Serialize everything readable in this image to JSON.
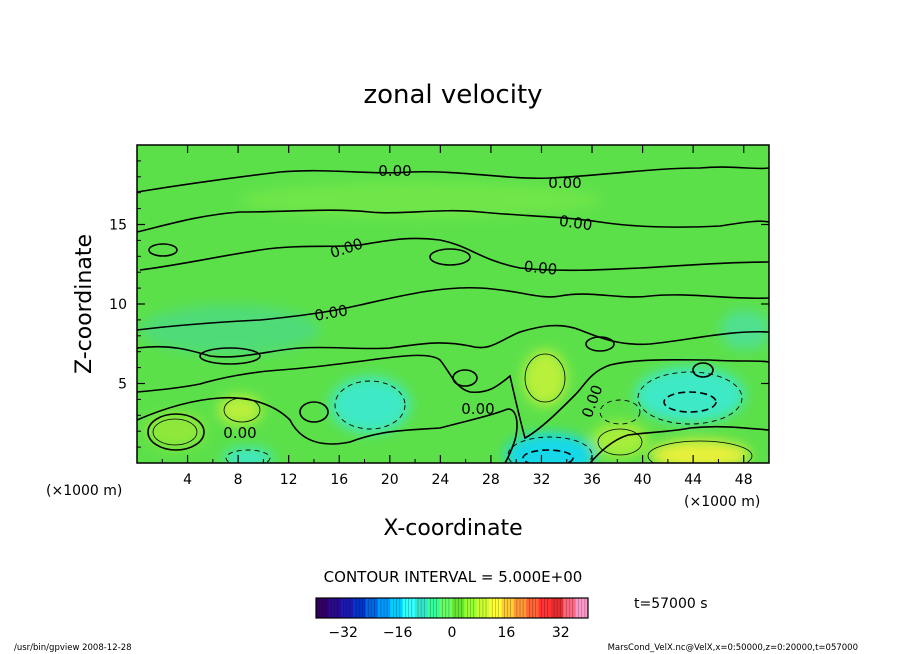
{
  "chart_data": {
    "type": "contour",
    "title": "zonal velocity",
    "xlabel": "X-coordinate",
    "ylabel": "Z-coordinate",
    "x_unit": "(×1000 m)",
    "y_unit": "(×1000 m)",
    "xlim": [
      0,
      50
    ],
    "ylim": [
      0,
      20
    ],
    "x_ticks": [
      4,
      8,
      12,
      16,
      20,
      24,
      28,
      32,
      36,
      40,
      44,
      48
    ],
    "y_ticks": [
      5,
      10,
      15
    ],
    "contour_interval_text": "CONTOUR INTERVAL = 5.000E+00",
    "contour_labels": [
      "0.00",
      "0.00",
      "0.00",
      "0.00",
      "0.00",
      "0.00",
      "0.00",
      "0.00",
      "0.00"
    ],
    "time_text": "t=57000 s",
    "colorbar": {
      "min": -40,
      "max": 40,
      "ticks": [
        -32,
        -16,
        0,
        16,
        32
      ],
      "tick_labels": [
        "−32",
        "−16",
        "0",
        "16",
        "32"
      ],
      "colors": [
        "#330066",
        "#2a0a8c",
        "#1a1ab3",
        "#0033cc",
        "#0066e6",
        "#0099ff",
        "#00ccff",
        "#33ffff",
        "#33e6cc",
        "#33ff99",
        "#66ff66",
        "#66e633",
        "#99ff33",
        "#ccff33",
        "#ffff33",
        "#ffcc33",
        "#ff9933",
        "#ff6633",
        "#ff3333",
        "#e62e2e",
        "#ff6680",
        "#ff99cc"
      ]
    },
    "colors": {
      "background_field": "#5ce04a",
      "positive_region": "#b9f03a",
      "negative_region": "#3ee9c6",
      "strong_negative": "#18d8e8",
      "strong_positive": "#e6f03a"
    }
  },
  "footer": {
    "left": "/usr/bin/gpview   2008-12-28",
    "right": "MarsCond_VelX.nc@VelX,x=0:50000,z=0:20000,t=057000"
  }
}
